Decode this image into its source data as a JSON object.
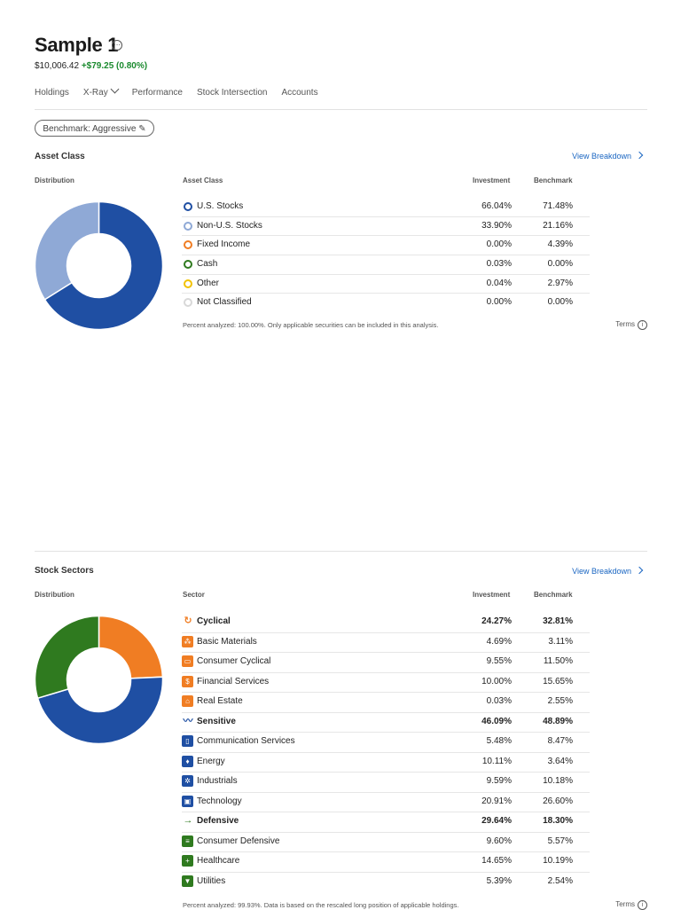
{
  "portfolio": {
    "name": "Sample 1",
    "name_icon": "circle-dots-icon",
    "value": "$10,006.42",
    "change": "+$79.25 (0.80%)"
  },
  "tabs": [
    {
      "label": "Holdings"
    },
    {
      "label": "X-Ray"
    },
    {
      "label": "Performance"
    },
    {
      "label": "Stock Intersection"
    },
    {
      "label": "Accounts"
    }
  ],
  "benchmark": {
    "label": "Benchmark: Aggressive",
    "icon": "pencil-icon"
  },
  "asset_class": {
    "title": "Asset Class",
    "view_link": "View Breakdown",
    "distribution_label": "Distribution",
    "col_name": "Asset Class",
    "col_investment": "Investment",
    "col_benchmark": "Benchmark",
    "rows": [
      {
        "name": "U.S. Stocks",
        "investment": "66.04%",
        "benchmark": "71.48%",
        "color": "#1f4fa3"
      },
      {
        "name": "Non-U.S. Stocks",
        "investment": "33.90%",
        "benchmark": "21.16%",
        "color": "#8fa9d6"
      },
      {
        "name": "Fixed Income",
        "investment": "0.00%",
        "benchmark": "4.39%",
        "color": "#f07d23"
      },
      {
        "name": "Cash",
        "investment": "0.03%",
        "benchmark": "0.00%",
        "color": "#2f7a1f"
      },
      {
        "name": "Other",
        "investment": "0.04%",
        "benchmark": "2.97%",
        "color": "#f2c200"
      },
      {
        "name": "Not Classified",
        "investment": "0.00%",
        "benchmark": "0.00%",
        "color": "#d8d8d8"
      }
    ],
    "donut": [
      {
        "label": "U.S. Stocks",
        "value": 66.04,
        "color": "#1f4fa3"
      },
      {
        "label": "Non-U.S. Stocks",
        "value": 33.9,
        "color": "#8fa9d6"
      }
    ],
    "note": "Percent analyzed: 100.00%. Only applicable securities can be included in this analysis.",
    "terms": "Terms"
  },
  "stock_sectors": {
    "title": "Stock Sectors",
    "view_link": "View Breakdown",
    "distribution_label": "Distribution",
    "col_name": "Sector",
    "col_investment": "Investment",
    "col_benchmark": "Benchmark",
    "rows": [
      {
        "name": "Cyclical",
        "investment": "24.27%",
        "benchmark": "32.81%",
        "bold": true,
        "icon": "cyclical-icon",
        "color": "#f07d23"
      },
      {
        "name": "Basic Materials",
        "investment": "4.69%",
        "benchmark": "3.11%",
        "icon": "basic-materials-icon",
        "color": "#f07d23"
      },
      {
        "name": "Consumer Cyclical",
        "investment": "9.55%",
        "benchmark": "11.50%",
        "icon": "consumer-cyclical-icon",
        "color": "#f07d23"
      },
      {
        "name": "Financial Services",
        "investment": "10.00%",
        "benchmark": "15.65%",
        "icon": "financial-services-icon",
        "color": "#f07d23"
      },
      {
        "name": "Real Estate",
        "investment": "0.03%",
        "benchmark": "2.55%",
        "icon": "real-estate-icon",
        "color": "#f07d23"
      },
      {
        "name": "Sensitive",
        "investment": "46.09%",
        "benchmark": "48.89%",
        "bold": true,
        "icon": "sensitive-icon",
        "color": "#1f4fa3"
      },
      {
        "name": "Communication Services",
        "investment": "5.48%",
        "benchmark": "8.47%",
        "icon": "communication-services-icon",
        "color": "#1f4fa3"
      },
      {
        "name": "Energy",
        "investment": "10.11%",
        "benchmark": "3.64%",
        "icon": "energy-icon",
        "color": "#1f4fa3"
      },
      {
        "name": "Industrials",
        "investment": "9.59%",
        "benchmark": "10.18%",
        "icon": "industrials-icon",
        "color": "#1f4fa3"
      },
      {
        "name": "Technology",
        "investment": "20.91%",
        "benchmark": "26.60%",
        "icon": "technology-icon",
        "color": "#1f4fa3"
      },
      {
        "name": "Defensive",
        "investment": "29.64%",
        "benchmark": "18.30%",
        "bold": true,
        "icon": "defensive-icon",
        "color": "#2f7a1f"
      },
      {
        "name": "Consumer Defensive",
        "investment": "9.60%",
        "benchmark": "5.57%",
        "icon": "consumer-defensive-icon",
        "color": "#2f7a1f"
      },
      {
        "name": "Healthcare",
        "investment": "14.65%",
        "benchmark": "10.19%",
        "icon": "healthcare-icon",
        "color": "#2f7a1f"
      },
      {
        "name": "Utilities",
        "investment": "5.39%",
        "benchmark": "2.54%",
        "icon": "utilities-icon",
        "color": "#2f7a1f"
      }
    ],
    "donut": [
      {
        "label": "Cyclical",
        "value": 24.27,
        "color": "#f07d23"
      },
      {
        "label": "Sensitive",
        "value": 46.09,
        "color": "#1f4fa3"
      },
      {
        "label": "Defensive",
        "value": 29.64,
        "color": "#2f7a1f"
      }
    ],
    "note": "Percent analyzed: 99.93%. Data is based on the rescaled long position of applicable holdings.",
    "terms": "Terms"
  }
}
